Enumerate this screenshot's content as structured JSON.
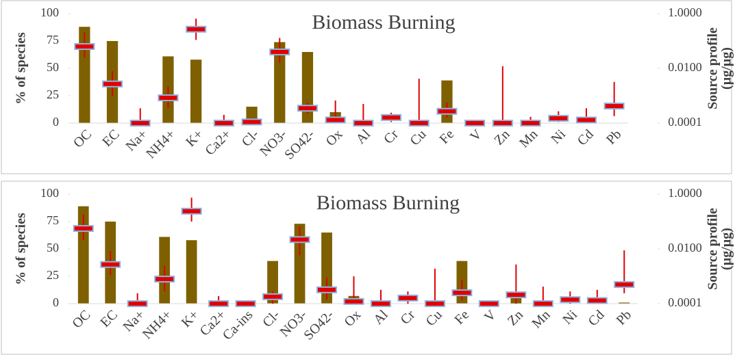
{
  "chart_data": [
    {
      "type": "bar",
      "title": "Biomass Burning",
      "ylabel": "% of species",
      "y2label": [
        "Source profile",
        "(µg/µg)"
      ],
      "categories": [
        "OC",
        "EC",
        "Na+",
        "NH4+",
        "K+",
        "Ca2+",
        "Cl-",
        "NO3-",
        "SO42-",
        "Ox",
        "Al",
        "Cr",
        "Cu",
        "Fe",
        "V",
        "Zn",
        "Mn",
        "Ni",
        "Cd",
        "Pb"
      ],
      "series": [
        {
          "color": "#7f6000",
          "values": [
            88,
            75,
            0,
            61,
            58,
            0,
            15,
            74,
            65,
            10,
            0,
            0,
            0,
            39,
            0,
            0,
            0,
            0,
            0,
            0
          ]
        },
        {
          "axis": "y2",
          "color": "#e00000",
          "values": [
            0.063,
            0.0027,
            0.0001,
            0.00084,
            0.27,
            0.0001,
            0.00011,
            0.04,
            0.00035,
            0.00013,
            0.0001,
            0.00016,
            0.0001,
            0.00027,
            0.0001,
            0.0001,
            0.0001,
            0.00015,
            0.00013,
            0.00042
          ],
          "error_high": [
            0.21,
            0.0079,
            0.00035,
            0.0022,
            0.66,
            0.0002,
            0.00014,
            0.13,
            0.00056,
            0.00067,
            0.0005,
            0.00024,
            0.0042,
            0.00056,
            0.00013,
            0.012,
            0.00017,
            0.00027,
            0.00035,
            0.0032
          ],
          "error_low": [
            0.024,
            0.001,
            0.0001,
            0.00035,
            0.11,
            0.0001,
            0.0001,
            0.016,
            0.00022,
            0.0001,
            0.0001,
            0.00011,
            0.0001,
            0.00016,
            0.0001,
            0.0001,
            0.0001,
            0.00011,
            0.0001,
            0.00018
          ]
        }
      ],
      "ylim": [
        0,
        100
      ],
      "yticks": [
        0,
        25,
        50,
        75,
        100
      ],
      "y2lim": [
        0.0001,
        1
      ],
      "y2scale": "log",
      "y2ticks": [
        {
          "value": 0.0001,
          "label": "0.0001"
        },
        {
          "value": 0.01,
          "label": "0.0100"
        },
        {
          "value": 1,
          "label": "1.0000"
        }
      ]
    },
    {
      "type": "bar",
      "title": "Biomass Burning",
      "ylabel": "% of species",
      "y2label": [
        "Source profile",
        "(µg/µg)"
      ],
      "categories": [
        "OC",
        "EC",
        "Na+",
        "NH4+",
        "K+",
        "Ca2+",
        "Ca-ins",
        "Cl-",
        "NO3-",
        "SO42-",
        "Ox",
        "Al",
        "Cr",
        "Cu",
        "Fe",
        "V",
        "Zn",
        "Mn",
        "Ni",
        "Cd",
        "Pb"
      ],
      "series": [
        {
          "color": "#7f6000",
          "values": [
            89,
            75,
            0,
            61,
            58,
            0,
            0,
            39,
            73,
            65,
            7,
            0,
            0,
            0,
            39,
            0,
            10,
            0,
            0,
            0,
            1
          ]
        },
        {
          "axis": "y2",
          "color": "#e00000",
          "values": [
            0.056,
            0.0027,
            0.0001,
            0.00079,
            0.24,
            0.0001,
            0.0001,
            0.00018,
            0.022,
            0.00032,
            0.00012,
            0.0001,
            0.00016,
            0.0001,
            0.00025,
            0.0001,
            0.00021,
            0.0001,
            0.00014,
            0.00013,
            0.0005
          ],
          "error_high": [
            0.18,
            0.0084,
            0.00024,
            0.0025,
            0.75,
            0.00019,
            0.00012,
            0.00028,
            0.067,
            0.0009,
            0.001,
            0.00032,
            0.00028,
            0.0019,
            0.00075,
            0.00013,
            0.0027,
            0.00042,
            0.00028,
            0.00032,
            0.0089
          ],
          "error_low": [
            0.021,
            0.0011,
            0.0001,
            0.00028,
            0.1,
            0.0001,
            0.0001,
            0.0001,
            0.0059,
            0.00014,
            0.0001,
            0.0001,
            0.0001,
            0.0001,
            0.00013,
            0.0001,
            0.0001,
            0.0001,
            0.0001,
            0.0001,
            0.00024
          ]
        }
      ],
      "ylim": [
        0,
        100
      ],
      "yticks": [
        0,
        25,
        50,
        75,
        100
      ],
      "y2lim": [
        0.0001,
        1
      ],
      "y2scale": "log",
      "y2ticks": [
        {
          "value": 0.0001,
          "label": "0.0001"
        },
        {
          "value": 0.01,
          "label": "0.0100"
        },
        {
          "value": 1,
          "label": "1.0000"
        }
      ]
    }
  ]
}
